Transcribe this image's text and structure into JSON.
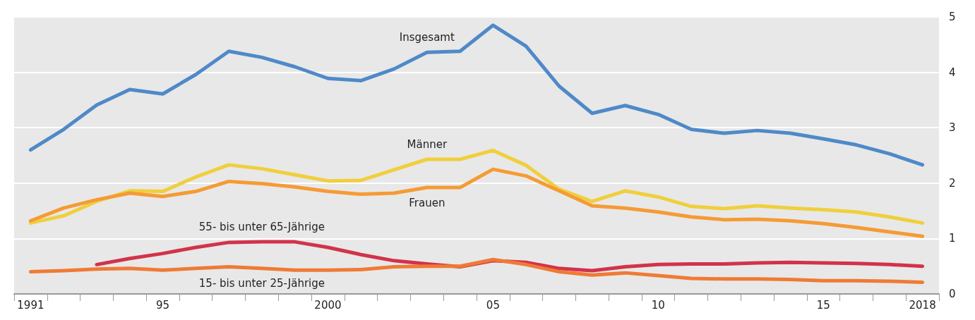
{
  "chart_data": {
    "type": "line",
    "categories": [
      "1991",
      null,
      null,
      null,
      "95",
      null,
      null,
      null,
      null,
      "2000",
      null,
      null,
      null,
      null,
      "05",
      null,
      null,
      null,
      null,
      "10",
      null,
      null,
      null,
      null,
      "15",
      null,
      null,
      "2018"
    ],
    "series": [
      {
        "name": "Insgesamt",
        "color": "#4f89c8",
        "values": [
          2.6,
          2.97,
          3.41,
          3.69,
          3.61,
          3.96,
          4.38,
          4.27,
          4.1,
          3.89,
          3.85,
          4.06,
          4.36,
          4.38,
          4.85,
          4.47,
          3.75,
          3.26,
          3.4,
          3.24,
          2.97,
          2.9,
          2.95,
          2.9,
          2.8,
          2.69,
          2.53,
          2.33
        ]
      },
      {
        "name": "Männer",
        "color": "#f0cf3c",
        "values": [
          1.28,
          1.41,
          1.67,
          1.86,
          1.85,
          2.11,
          2.33,
          2.26,
          2.15,
          2.04,
          2.05,
          2.24,
          2.43,
          2.43,
          2.59,
          2.32,
          1.89,
          1.67,
          1.86,
          1.75,
          1.58,
          1.54,
          1.59,
          1.55,
          1.52,
          1.48,
          1.39,
          1.28
        ]
      },
      {
        "name": "Frauen",
        "color": "#f59b35",
        "values": [
          1.32,
          1.55,
          1.7,
          1.82,
          1.76,
          1.85,
          2.03,
          1.99,
          1.93,
          1.85,
          1.8,
          1.82,
          1.92,
          1.92,
          2.25,
          2.13,
          1.86,
          1.59,
          1.55,
          1.48,
          1.39,
          1.34,
          1.35,
          1.32,
          1.27,
          1.2,
          1.12,
          1.04
        ]
      },
      {
        "name": "55- bis unter 65-Jährige",
        "color": "#d2334a",
        "values": [
          null,
          null,
          0.53,
          0.64,
          0.73,
          0.84,
          0.93,
          0.94,
          0.94,
          0.84,
          0.71,
          0.6,
          0.54,
          0.49,
          0.6,
          0.57,
          0.46,
          0.42,
          0.49,
          0.53,
          0.54,
          0.54,
          0.56,
          0.57,
          0.56,
          0.55,
          0.53,
          0.5
        ]
      },
      {
        "name": "15- bis unter 25-Jährige",
        "color": "#f07a35",
        "values": [
          0.4,
          0.42,
          0.45,
          0.46,
          0.43,
          0.46,
          0.49,
          0.46,
          0.43,
          0.43,
          0.44,
          0.49,
          0.5,
          0.5,
          0.62,
          0.53,
          0.4,
          0.34,
          0.38,
          0.33,
          0.28,
          0.27,
          0.27,
          0.26,
          0.24,
          0.24,
          0.23,
          0.21
        ]
      }
    ],
    "ylim": [
      0,
      5
    ],
    "yticks": [
      0,
      1,
      2,
      3,
      4,
      5
    ],
    "grid": "y",
    "legend": false
  }
}
